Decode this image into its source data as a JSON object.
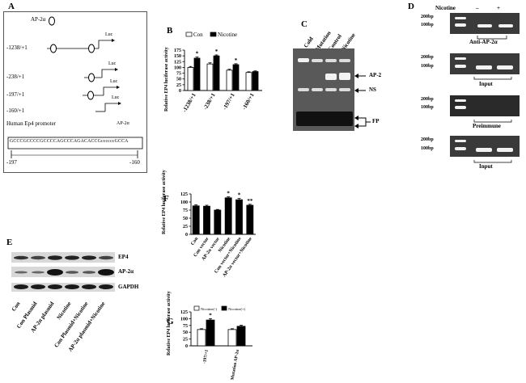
{
  "panels": {
    "A": "A",
    "B": "B",
    "C": "C",
    "D": "D",
    "E": "E",
    "F": "F",
    "G": "G"
  },
  "panelA": {
    "factor": "AP-2α",
    "constructs": [
      "-1238/+1",
      "-238/+1",
      "-197/+1",
      "-160/+1"
    ],
    "luc": "Luc",
    "promoter_title": "Human Ep4 promoter",
    "site_label": "AP-2α",
    "sequence": "GCCCGCCCCGCCCCAGCCCAGACACCGccccccGCCA",
    "start": "-197",
    "end": "-160"
  },
  "panelB": {
    "legend": [
      "Con",
      "Nicotine"
    ],
    "ylabel": "Relative EP4 luciferase activity",
    "ticks": [
      "0",
      "25",
      "50",
      "75",
      "100",
      "125",
      "150",
      "175"
    ],
    "star": "*"
  },
  "panelC": {
    "lanes": [
      "Cold",
      "Mutation",
      "Control",
      "Nicotine"
    ],
    "arrows": [
      "AP-2",
      "NS",
      "FP"
    ]
  },
  "panelD": {
    "nicotine_label": "Nicotine",
    "minus": "–",
    "plus": "+",
    "size200": "200bp",
    "size100": "100bp",
    "captions": [
      "Anti-AP-2α",
      "Input",
      "Preimmune",
      "Input"
    ]
  },
  "panelE": {
    "rows": [
      "EP4",
      "AP-2α",
      "GAPDH"
    ],
    "lanes": [
      "Con",
      "Con Plasmid",
      "AP-2α plasmid",
      "Nicotine",
      "Con Plasmid+Nicotine",
      "AP-2α plasmid+Nicotine"
    ]
  },
  "panelF": {
    "ylabel": "Relative EP4 luciferase activity",
    "ticks": [
      "0",
      "25",
      "50",
      "75",
      "100",
      "125"
    ],
    "categories": [
      "Con",
      "Con vector",
      "AP-2α vector",
      "Nicotine",
      "Con vector+Nicotine",
      "AP-2α vector+Nicotine"
    ],
    "stars": [
      "",
      "",
      "",
      "*",
      "*",
      "**"
    ]
  },
  "panelG": {
    "legend": [
      "Nicotine(-)",
      "Nicotine(+)"
    ],
    "ylabel": "Relative EP4 luciferase activity",
    "ticks": [
      "0",
      "25",
      "50",
      "75",
      "100",
      "125"
    ],
    "categories": [
      "-197/+1",
      "Mutation AP-2α"
    ],
    "star": "*"
  },
  "chart_data": [
    {
      "type": "bar",
      "categories": [
        "-1238/+1",
        "-238/+1",
        "-197/+1",
        "-160/+1"
      ],
      "series": [
        {
          "name": "Con",
          "values": [
            100,
            115,
            88,
            78
          ],
          "errors": [
            4,
            5,
            4,
            3
          ]
        },
        {
          "name": "Nicotine",
          "values": [
            140,
            150,
            112,
            82
          ],
          "errors": [
            5,
            4,
            4,
            3
          ]
        }
      ],
      "ylabel": "Relative EP4 luciferase activity",
      "ylim": [
        0,
        175
      ]
    },
    {
      "type": "bar",
      "categories": [
        "Con",
        "Con vector",
        "AP-2α vector",
        "Nicotine",
        "Con vector+Nicotine",
        "AP-2α vector+Nicotine"
      ],
      "series": [
        {
          "values": [
            88,
            87,
            75,
            113,
            107,
            90
          ],
          "errors": [
            3,
            3,
            2,
            3,
            4,
            3
          ]
        }
      ],
      "ylabel": "Relative EP4 luciferase activity",
      "ylim": [
        0,
        125
      ]
    },
    {
      "type": "bar",
      "categories": [
        "-197/+1",
        "Mutation AP-2α"
      ],
      "series": [
        {
          "name": "Nicotine(-)",
          "values": [
            60,
            60
          ],
          "errors": [
            3,
            3
          ]
        },
        {
          "name": "Nicotine(+)",
          "values": [
            95,
            72
          ],
          "errors": [
            5,
            4
          ]
        }
      ],
      "ylabel": "Relative EP4 luciferase activity",
      "ylim": [
        0,
        125
      ]
    }
  ]
}
